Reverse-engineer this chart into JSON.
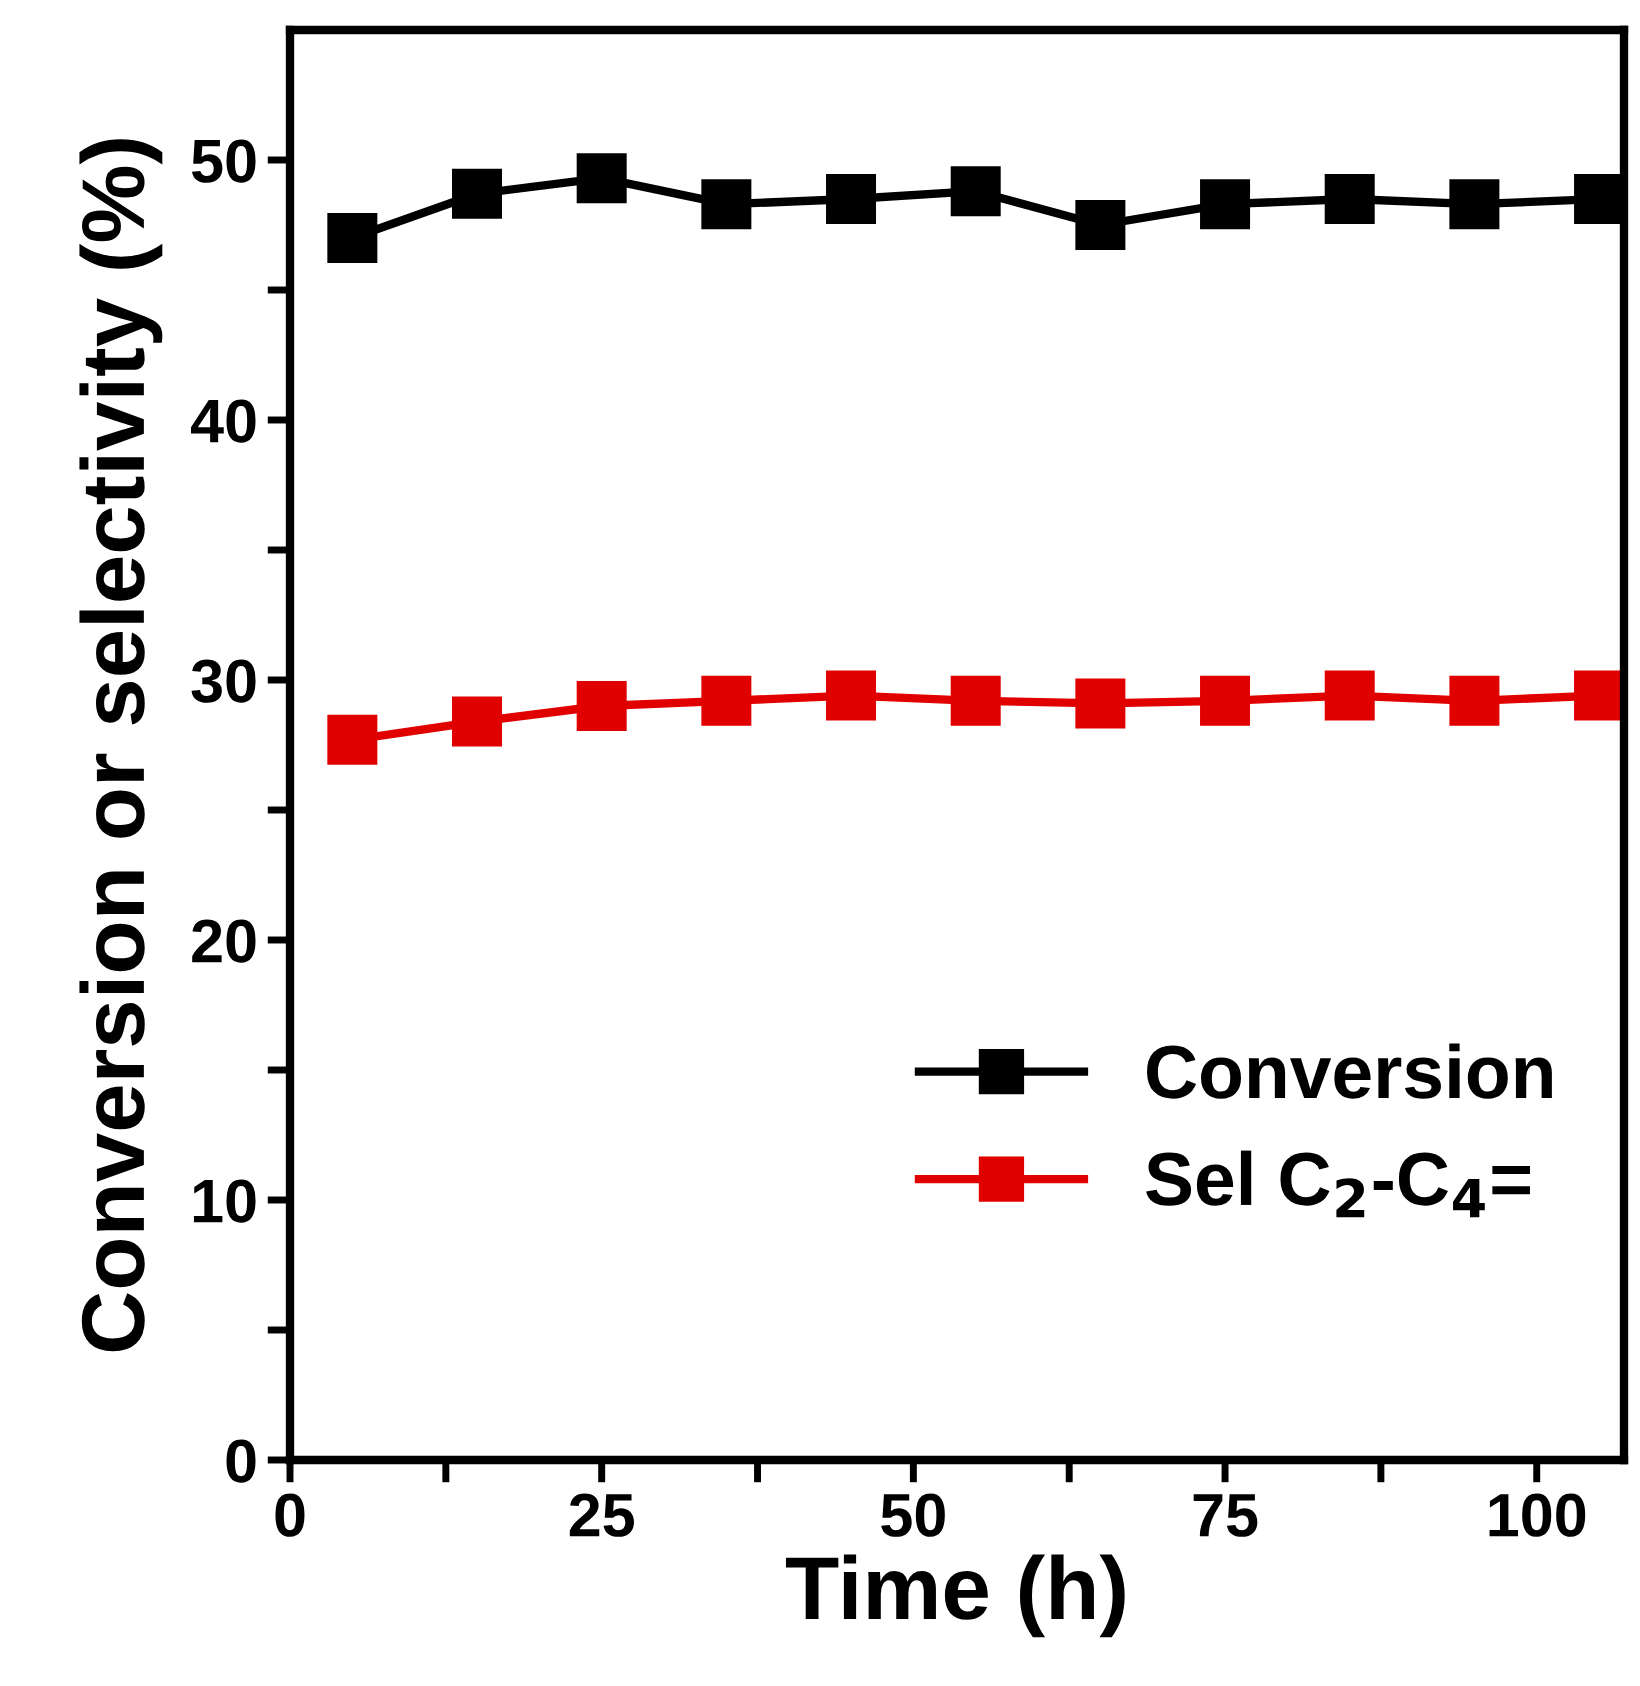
{
  "chart_data": {
    "type": "line",
    "xlabel": "Time (h)",
    "ylabel": "Conversion or selectivity (%)",
    "x": [
      5,
      15,
      25,
      35,
      45,
      55,
      65,
      75,
      85,
      95,
      105
    ],
    "series": [
      {
        "name": "Conversion",
        "color": "#000000",
        "values": [
          47.0,
          48.7,
          49.3,
          48.3,
          48.5,
          48.8,
          47.5,
          48.3,
          48.5,
          48.3,
          48.5
        ]
      },
      {
        "name": "Sel C$_{2}$-C$_{4}$=",
        "color": "#e00000",
        "values": [
          27.7,
          28.4,
          29.0,
          29.2,
          29.4,
          29.2,
          29.1,
          29.2,
          29.4,
          29.2,
          29.4
        ]
      }
    ],
    "xlim": [
      0,
      107
    ],
    "ylim": [
      0,
      55
    ],
    "xticks": [
      0,
      {
        "value": 12.5,
        "label": null
      },
      25,
      {
        "value": 37.5,
        "label": null
      },
      50,
      {
        "value": 62.5,
        "label": null
      },
      75,
      {
        "value": 87.5,
        "label": null
      },
      100
    ],
    "yticks": [
      0,
      {
        "value": 5,
        "label": null
      },
      10,
      {
        "value": 15,
        "label": null
      },
      20,
      {
        "value": 25,
        "label": null
      },
      30,
      {
        "value": 35,
        "label": null
      },
      40,
      {
        "value": 45,
        "label": null
      },
      50
    ],
    "grid": false,
    "legend": "bottom right",
    "marker": "square",
    "line_style": "solid"
  }
}
